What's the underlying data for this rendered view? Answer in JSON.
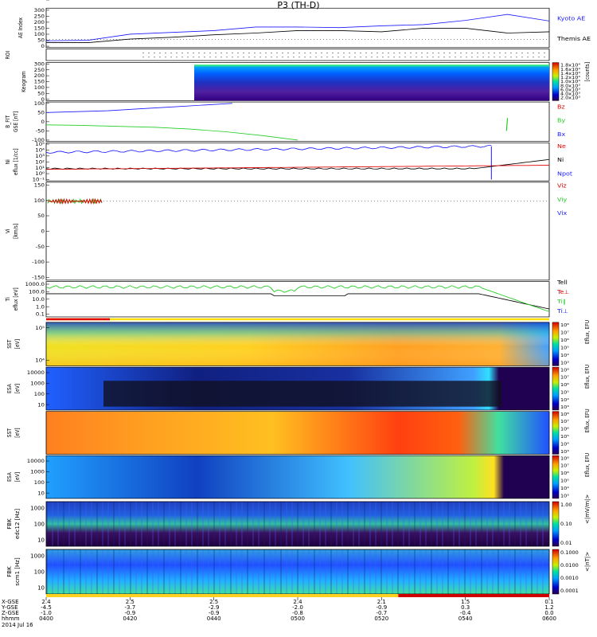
{
  "title": "P3 (TH-D)",
  "date_label": "2014 Jul 16",
  "colors": {
    "blue": "#1a1aff",
    "black": "#000000",
    "red": "#e00000",
    "green": "#22cc22"
  },
  "footer": {
    "row_labels": [
      "X-GSE",
      "Y-GSE",
      "Z-GSE",
      "hhmm"
    ],
    "columns": [
      {
        "x": "2.4",
        "y": "-4.5",
        "z": "-1.0",
        "t": "0400"
      },
      {
        "x": "2.5",
        "y": "-3.7",
        "z": "-0.9",
        "t": "0420"
      },
      {
        "x": "2.5",
        "y": "-2.9",
        "z": "-0.9",
        "t": "0440"
      },
      {
        "x": "2.4",
        "y": "-2.0",
        "z": "-0.8",
        "t": "0500"
      },
      {
        "x": "2.1",
        "y": "-0.9",
        "z": "-0.7",
        "t": "0520"
      },
      {
        "x": "1.5",
        "y": "0.3",
        "z": "-0.4",
        "t": "0540"
      },
      {
        "x": "0.1",
        "y": "1.2",
        "z": "0.0",
        "t": "0600"
      }
    ]
  },
  "chart_data": [
    {
      "type": "line",
      "panel": "AE",
      "ylabel": "AE Index",
      "yticks": [
        "300",
        "250",
        "200",
        "150",
        "100",
        "50",
        "0"
      ],
      "ylim": [
        0,
        300
      ],
      "x": [
        0,
        10,
        20,
        30,
        40,
        50,
        60,
        70,
        80,
        90,
        100,
        110,
        120
      ],
      "series": [
        {
          "name": "Kyoto AE",
          "color": "#1a1aff",
          "values": [
            45,
            50,
            100,
            115,
            130,
            160,
            160,
            155,
            170,
            180,
            215,
            265,
            210
          ]
        },
        {
          "name": "Themis AE",
          "color": "#000000",
          "values": [
            30,
            30,
            60,
            75,
            95,
            110,
            130,
            130,
            120,
            150,
            150,
            110,
            120
          ]
        }
      ]
    },
    {
      "type": "heatmap",
      "panel": "ROI",
      "ylabel": "ROI"
    },
    {
      "type": "heatmap",
      "panel": "Keogram",
      "ylabel": "Keogram",
      "yticks": [
        "300",
        "250",
        "200",
        "150",
        "100",
        "50",
        "0"
      ],
      "colorbar_ticks": [
        "1.8x10⁴",
        "1.6x10⁴",
        "1.4x10⁴",
        "1.2x10⁴",
        "1.0x10⁴",
        "8.0x10³",
        "6.0x10³",
        "4.0x10³",
        "2.0x10³"
      ],
      "colorbar_label": "[counts]"
    },
    {
      "type": "line",
      "panel": "B_FIT",
      "ylabel": "B_FIT",
      "unit_label": "GSE [nT]",
      "yticks": [
        "100",
        "50",
        "0",
        "-50",
        "-100"
      ],
      "ylim": [
        -100,
        100
      ],
      "series": [
        {
          "name": "Bz",
          "color": "#e00000"
        },
        {
          "name": "By",
          "color": "#22cc22",
          "values": [
            -17,
            -20,
            -25,
            -30,
            -40,
            -55,
            -75,
            -100
          ]
        },
        {
          "name": "Bx",
          "color": "#1a1aff",
          "values": [
            50,
            55,
            60,
            70,
            80,
            90,
            100
          ]
        }
      ]
    },
    {
      "type": "line",
      "panel": "Ni",
      "ylabel": "Ni",
      "unit_label": "eflux [1/cc]",
      "yticks": [
        "10⁵",
        "10⁴",
        "10³",
        "10²",
        "10¹",
        "10⁰",
        "10⁻¹"
      ],
      "series": [
        {
          "name": "Ne",
          "color": "#e00000"
        },
        {
          "name": "Ni",
          "color": "#000000"
        },
        {
          "name": "Npot",
          "color": "#1a1aff"
        }
      ]
    },
    {
      "type": "line",
      "panel": "Vi",
      "ylabel": "Vi",
      "unit_label": "[km/s]",
      "yticks": [
        "150",
        "100",
        "50",
        "0",
        "-50",
        "-100",
        "-150"
      ],
      "series": [
        {
          "name": "Viz",
          "color": "#e00000"
        },
        {
          "name": "Viy",
          "color": "#22cc22"
        },
        {
          "name": "Vix",
          "color": "#1a1aff"
        }
      ]
    },
    {
      "type": "line",
      "panel": "Ti",
      "ylabel": "Ti",
      "unit_label": "eflux [eV]",
      "yticks": [
        "1000.0",
        "100.0",
        "10.0",
        "1.0",
        "0.1"
      ],
      "series": [
        {
          "name": "Tell",
          "color": "#000000"
        },
        {
          "name": "Te⊥",
          "color": "#e00000"
        },
        {
          "name": "Ti∥",
          "color": "#22cc22"
        },
        {
          "name": "Ti⊥",
          "color": "#1a1aff"
        }
      ]
    },
    {
      "type": "heatmap",
      "panel": "SST ion",
      "ylabel": "SST",
      "unit_label": "[eV]",
      "yticks": [
        "10⁵",
        "10⁴"
      ],
      "colorbar_ticks": [
        "10⁸",
        "10⁷",
        "10⁶",
        "10⁵",
        "10⁴",
        "10³"
      ],
      "colorbar_label": "Eflux, EFU"
    },
    {
      "type": "heatmap",
      "panel": "ESA ion",
      "ylabel": "ESA",
      "unit_label": "[eV]",
      "yticks": [
        "10000",
        "1000",
        "100",
        "10"
      ],
      "colorbar_ticks": [
        "10⁸",
        "10⁷",
        "10⁶",
        "10⁵",
        "10⁴",
        "10³"
      ],
      "colorbar_label": "Eflux, EFU"
    },
    {
      "type": "heatmap",
      "panel": "SST electron",
      "ylabel": "SST",
      "unit_label": "[eV]",
      "yticks": [
        "10⁵"
      ],
      "colorbar_ticks": [
        "10⁸",
        "10⁷",
        "10⁶",
        "10⁵",
        "10⁴",
        "10³"
      ],
      "colorbar_label": "Eflux, EFU"
    },
    {
      "type": "heatmap",
      "panel": "ESA electron",
      "ylabel": "ESA",
      "unit_label": "[eV]",
      "yticks": [
        "10000",
        "1000",
        "100",
        "10"
      ],
      "colorbar_ticks": [
        "10⁸",
        "10⁷",
        "10⁶",
        "10⁵",
        "10⁴",
        "10³"
      ],
      "colorbar_label": "Eflux, EFU"
    },
    {
      "type": "heatmap",
      "panel": "FBK edc12",
      "ylabel": "FBK",
      "unit_label": "edc12 [Hz]",
      "yticks": [
        "1000",
        "100",
        "10"
      ],
      "colorbar_ticks": [
        "1.00",
        "0.10",
        "0.01"
      ],
      "colorbar_label": "<|mV/m|>"
    },
    {
      "type": "heatmap",
      "panel": "FBK scm1",
      "ylabel": "FBK",
      "unit_label": "scm1 [Hz]",
      "yticks": [
        "1000",
        "100",
        "10"
      ],
      "colorbar_ticks": [
        "0.1000",
        "0.0100",
        "0.0010",
        "0.0001"
      ],
      "colorbar_label": "<|nT|>"
    }
  ]
}
